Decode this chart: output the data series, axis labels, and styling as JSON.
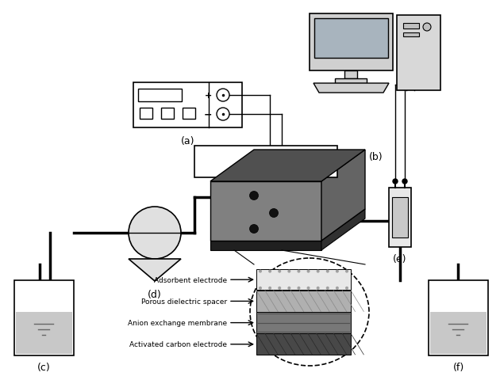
{
  "bg_color": "#ffffff",
  "labels": {
    "a": "(a)",
    "b": "(b)",
    "c": "(c)",
    "d": "(d)",
    "e": "(e)",
    "f": "(f)"
  },
  "layer_labels": [
    "Adsorbent electrode",
    "Porous dielectric spacer",
    "Anion exchange membrane",
    "Activated carbon electrode"
  ],
  "layer_colors": [
    "#e8e8e8",
    "#b0b0b0",
    "#787878",
    "#484848"
  ],
  "layer_pattern_colors": [
    "#c0c0c0",
    "#909090",
    "#585858",
    "#282828"
  ],
  "line_color": "#000000",
  "pump_color": "#e0e0e0",
  "tank_fill_color": "#c8c8c8",
  "tank_wall_color": "#d8d8d8",
  "cell_top_color": "#505050",
  "cell_front_color": "#808080",
  "cell_right_color": "#646464",
  "cell_base_color": "#202020",
  "e_device_outer": "#e8e8e8",
  "e_device_inner": "#c8c8c8",
  "wire_color": "#000000"
}
